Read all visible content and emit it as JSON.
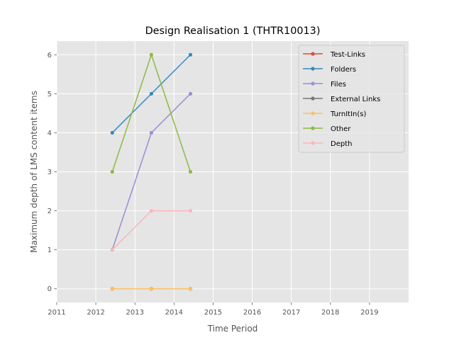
{
  "chart_data": {
    "type": "line",
    "title": "Design Realisation 1 (THTR10013)",
    "xlabel": "Time Period",
    "ylabel": "Maximum depth of LMS content items",
    "xlim": [
      2011,
      2020
    ],
    "ylim": [
      -0.35,
      6.35
    ],
    "xticks": [
      2011,
      2012,
      2013,
      2014,
      2015,
      2016,
      2017,
      2018,
      2019
    ],
    "yticks": [
      0,
      1,
      2,
      3,
      4,
      5,
      6
    ],
    "grid": true,
    "legend_position": "top-right",
    "x": [
      2012.42,
      2013.42,
      2014.42
    ],
    "series": [
      {
        "name": "Test-Links",
        "color": "#E24A33",
        "values": [
          0,
          0,
          0
        ]
      },
      {
        "name": "Folders",
        "color": "#348ABD",
        "values": [
          4,
          5,
          6
        ]
      },
      {
        "name": "Files",
        "color": "#988ED5",
        "values": [
          1,
          4,
          5
        ]
      },
      {
        "name": "External Links",
        "color": "#777777",
        "values": [
          0,
          0,
          0
        ]
      },
      {
        "name": "TurnItIn(s)",
        "color": "#FBC15E",
        "values": [
          0,
          0,
          0
        ]
      },
      {
        "name": "Other",
        "color": "#8EBA42",
        "values": [
          3,
          6,
          3
        ]
      },
      {
        "name": "Depth",
        "color": "#FFB5B8",
        "values": [
          1,
          2,
          2
        ]
      }
    ]
  }
}
